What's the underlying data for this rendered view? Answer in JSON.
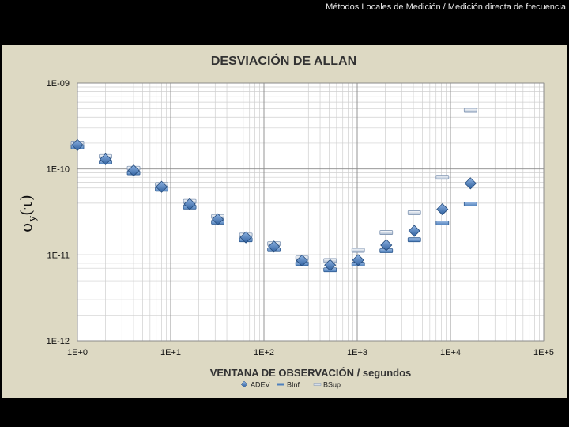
{
  "header": {
    "text": "Métodos Locales de Medición / Medición directa de frecuencia"
  },
  "colors": {
    "adev": "#2e5f9e",
    "binf": "#4f81bd",
    "bsup": "#c0cde0",
    "panel": "#ddd9c3",
    "plot_bg": "#ffffff"
  },
  "chart_data": {
    "type": "scatter",
    "title": "DESVIACIÓN DE ALLAN",
    "xlabel": "VENTANA DE OBSERVACIÓN / segundos",
    "ylabel_main": "σ",
    "ylabel_sub": "y",
    "ylabel_suffix": "(τ)",
    "x_scale": "log",
    "y_scale": "log",
    "xlim": [
      1,
      100000
    ],
    "ylim": [
      1e-12,
      1e-09
    ],
    "grid": true,
    "legend_position": "bottom",
    "x_ticks": [
      1,
      10,
      100,
      1000,
      10000,
      100000
    ],
    "x_tick_labels": [
      "1E+0",
      "1E+1",
      "1E+2",
      "1E+3",
      "1E+4",
      "1E+5"
    ],
    "y_ticks": [
      1e-09,
      1e-10,
      1e-11,
      1e-12
    ],
    "y_tick_labels": [
      "1E-09",
      "1E-10",
      "1E-11",
      "1E-12"
    ],
    "x": [
      1,
      2,
      4,
      8,
      16,
      32,
      64,
      128,
      256,
      512,
      1024,
      2048,
      4096,
      8192,
      16384
    ],
    "series": [
      {
        "name": "ADEV",
        "marker": "diamond",
        "values": [
          1.9e-10,
          1.3e-10,
          9.6e-11,
          6.2e-11,
          3.9e-11,
          2.6e-11,
          1.6e-11,
          1.25e-11,
          8.6e-12,
          7.6e-12,
          8.7e-12,
          1.3e-11,
          1.9e-11,
          3.4e-11,
          6.8e-11
        ]
      },
      {
        "name": "BInf",
        "marker": "dash",
        "values": [
          1.8e-10,
          1.2e-10,
          9e-11,
          5.8e-11,
          3.6e-11,
          2.4e-11,
          1.5e-11,
          1.15e-11,
          7.9e-12,
          6.7e-12,
          7.8e-12,
          1.12e-11,
          1.5e-11,
          2.35e-11,
          3.9e-11
        ]
      },
      {
        "name": "BSup",
        "marker": "dash",
        "values": [
          2e-10,
          1.4e-10,
          1.02e-10,
          6.6e-11,
          4.2e-11,
          2.8e-11,
          1.7e-11,
          1.35e-11,
          9.2e-12,
          8.6e-12,
          1.13e-11,
          1.82e-11,
          3.1e-11,
          8e-11,
          4.8e-10
        ]
      }
    ]
  }
}
